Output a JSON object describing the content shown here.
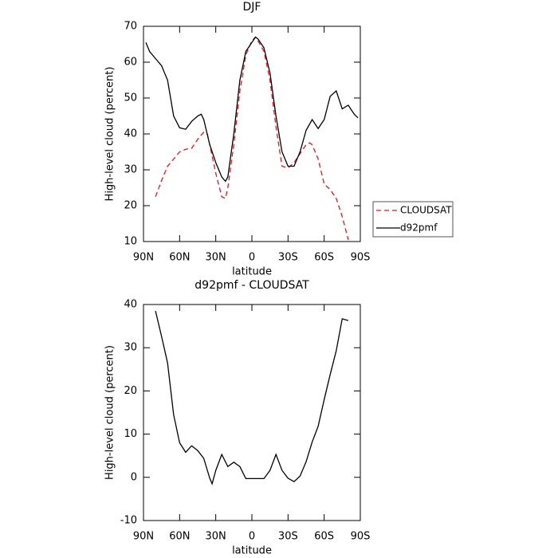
{
  "chart_data": [
    {
      "type": "line",
      "title": "DJF",
      "x_label": "latitude",
      "y_label": "High-level cloud (percent)",
      "xlim": [
        90,
        -90
      ],
      "xticks": [
        {
          "value": 90,
          "label": "90N"
        },
        {
          "value": 60,
          "label": "60N"
        },
        {
          "value": 30,
          "label": "30N"
        },
        0,
        {
          "value": -30,
          "label": "30S"
        },
        {
          "value": -60,
          "label": "60S"
        },
        {
          "value": -90,
          "label": "90S"
        }
      ],
      "ylim": [
        10,
        70
      ],
      "yticks": [
        10,
        20,
        30,
        40,
        50,
        60,
        70
      ],
      "legend": "right",
      "series": [
        {
          "name": "CLOUDSAT",
          "color": "#e8141c",
          "linestyle": "dashed",
          "x": [
            80,
            75,
            70,
            65,
            60,
            55,
            50,
            45,
            40,
            37,
            35,
            30,
            25,
            22,
            20,
            15,
            10,
            5,
            0,
            -3,
            -5,
            -10,
            -15,
            -20,
            -25,
            -30,
            -35,
            -40,
            -45,
            -48,
            -50,
            -55,
            -60,
            -65,
            -70,
            -75,
            -80
          ],
          "values": [
            22.5,
            27,
            31,
            33,
            35,
            35.7,
            36,
            38.5,
            40.5,
            40,
            37,
            29,
            22.5,
            22,
            25,
            37,
            52,
            62,
            66,
            67,
            66,
            63,
            55,
            42,
            31,
            30.5,
            32,
            34.5,
            37,
            37.5,
            37,
            33,
            26,
            24.5,
            22,
            17,
            10.5
          ]
        },
        {
          "name": "d92pmf",
          "color": "#000000",
          "linestyle": "solid",
          "x": [
            88,
            85,
            80,
            75,
            70,
            65,
            60,
            55,
            50,
            45,
            42,
            40,
            35,
            30,
            25,
            22,
            20,
            15,
            10,
            5,
            0,
            -3,
            -5,
            -10,
            -15,
            -20,
            -25,
            -30,
            -35,
            -40,
            -45,
            -50,
            -55,
            -60,
            -65,
            -70,
            -75,
            -80,
            -85,
            -88
          ],
          "values": [
            65.5,
            63,
            61,
            59,
            55,
            45,
            41.7,
            41.3,
            43.5,
            45,
            45.5,
            44,
            37,
            32,
            28,
            26.8,
            28,
            40,
            55,
            63,
            65.5,
            67,
            66.5,
            64,
            57,
            45,
            35,
            31,
            31,
            35,
            41,
            44,
            41.5,
            44,
            50.5,
            52,
            47,
            48,
            45.5,
            44.5
          ]
        }
      ]
    },
    {
      "type": "line",
      "title": "d92pmf - CLOUDSAT",
      "x_label": "latitude",
      "y_label": "High-level cloud (percent)",
      "xlim": [
        90,
        -90
      ],
      "xticks": [
        {
          "value": 90,
          "label": "90N"
        },
        {
          "value": 60,
          "label": "60N"
        },
        {
          "value": 30,
          "label": "30N"
        },
        0,
        {
          "value": -30,
          "label": "30S"
        },
        {
          "value": -60,
          "label": "60S"
        },
        {
          "value": -90,
          "label": "90S"
        }
      ],
      "ylim": [
        -10,
        40
      ],
      "yticks": [
        -10,
        0,
        10,
        20,
        30,
        40
      ],
      "series": [
        {
          "color": "#000000",
          "linestyle": "solid",
          "x": [
            80,
            75,
            70,
            65,
            60,
            55,
            50,
            45,
            40,
            35,
            33,
            30,
            25,
            20,
            15,
            10,
            5,
            0,
            -5,
            -10,
            -15,
            -20,
            -25,
            -30,
            -35,
            -40,
            -45,
            -50,
            -55,
            -60,
            -65,
            -70,
            -75,
            -80
          ],
          "values": [
            38.5,
            32.6,
            26.5,
            14.5,
            8,
            5.8,
            7.3,
            6.2,
            4.4,
            -0.2,
            -1.5,
            1.6,
            5.3,
            2.5,
            3.5,
            2.5,
            -0.3,
            -0.3,
            -0.3,
            -0.3,
            1.6,
            5.3,
            1.6,
            -0.2,
            -1,
            0.3,
            3.6,
            8.2,
            11.8,
            18,
            23.8,
            29.3,
            36.7,
            36.3
          ]
        }
      ]
    }
  ]
}
